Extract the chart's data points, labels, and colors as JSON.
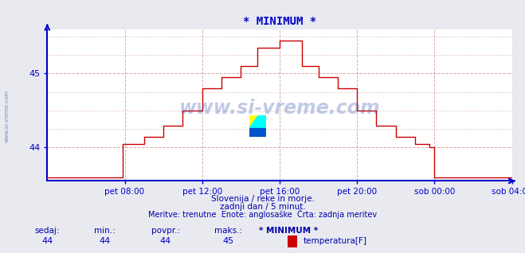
{
  "title": "* MINIMUM *",
  "title_color": "#0000cc",
  "background_color": "#e8eaf0",
  "plot_bg_color": "#ffffff",
  "line_color": "#cc0000",
  "axis_color": "#0000cc",
  "grid_color": "#ddaaaa",
  "xlabel_color": "#0000aa",
  "ylabel_color": "#0000aa",
  "watermark": "www.si-vreme.com",
  "watermark_color": "#3355aa",
  "watermark_alpha": 0.3,
  "subtitle1": "Slovenija / reke in morje.",
  "subtitle2": "zadnji dan / 5 minut.",
  "subtitle3": "Meritve: trenutne  Enote: anglosaške  Črta: zadnja meritev",
  "footer_labels": [
    "sedaj:",
    "min.:",
    "povpr.:",
    "maks.:",
    "* MINIMUM *"
  ],
  "footer_values": [
    "44",
    "44",
    "44",
    "45"
  ],
  "footer_unit": "temperatura[F]",
  "footer_color": "#0000aa",
  "footer_value_color": "#0000cc",
  "xlim": [
    0,
    288
  ],
  "ylim": [
    43.55,
    45.6
  ],
  "yticks": [
    44,
    45
  ],
  "xtick_labels": [
    "pet 08:00",
    "pet 12:00",
    "pet 16:00",
    "pet 20:00",
    "sob 00:00",
    "sob 04:00"
  ],
  "xtick_positions": [
    48,
    96,
    144,
    192,
    240,
    288
  ],
  "time_data": [
    0,
    47,
    47,
    60,
    60,
    72,
    72,
    84,
    84,
    96,
    96,
    108,
    108,
    120,
    120,
    130,
    130,
    144,
    144,
    158,
    158,
    168,
    168,
    180,
    180,
    192,
    192,
    204,
    204,
    216,
    216,
    228,
    228,
    237,
    237,
    240,
    240,
    288
  ],
  "temp_data": [
    43.6,
    43.6,
    44.05,
    44.05,
    44.15,
    44.15,
    44.3,
    44.3,
    44.5,
    44.5,
    44.8,
    44.8,
    44.95,
    44.95,
    45.1,
    45.1,
    45.35,
    45.35,
    45.45,
    45.45,
    45.1,
    45.1,
    44.95,
    44.95,
    44.8,
    44.8,
    44.5,
    44.5,
    44.3,
    44.3,
    44.15,
    44.15,
    44.05,
    44.05,
    44.0,
    44.0,
    43.6,
    43.6
  ],
  "side_watermark": "www.si-vreme.com"
}
